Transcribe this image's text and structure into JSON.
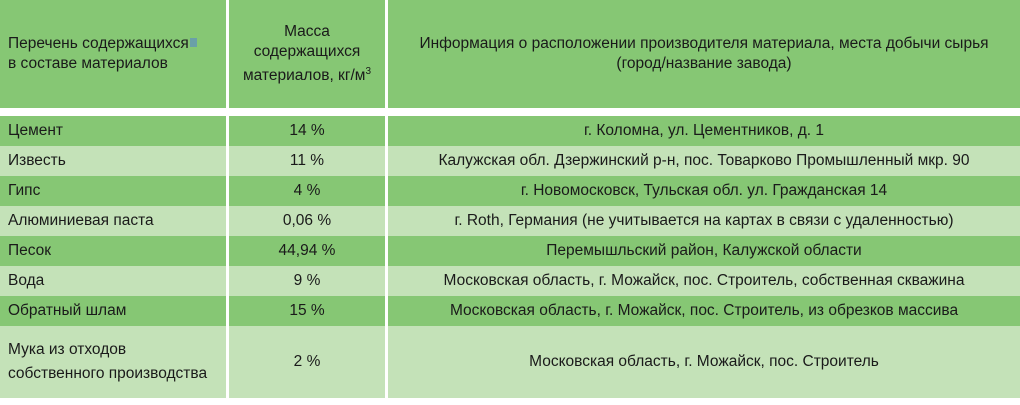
{
  "table": {
    "headers": [
      "Перечень содержащихся",
      "Масса содержащихся материалов, кг/м",
      "Информация о расположении производителя материала, места добычи сырья (город/название завода)"
    ],
    "headers_line2": [
      "в составе материалов"
    ],
    "headers_sup": [
      "",
      "3",
      ""
    ],
    "rows": [
      {
        "material": "Цемент",
        "mass": "14 %",
        "location": "г. Коломна, ул. Цементников, д. 1"
      },
      {
        "material": "Известь",
        "mass": "11 %",
        "location": "Калужская обл. Дзержинский р-н, пос. Товарково Промышленный мкр. 90"
      },
      {
        "material": "Гипс",
        "mass": "4 %",
        "location": "г. Новомосковск, Тульская обл. ул. Гражданская 14"
      },
      {
        "material": "Алюминиевая паста",
        "mass": "0,06 %",
        "location": "г. Roth, Германия (не учитывается на картах в связи с удаленностью)"
      },
      {
        "material": "Песок",
        "mass": "44,94 %",
        "location": "Перемышльский район, Калужской области"
      },
      {
        "material": "Вода",
        "mass": "9 %",
        "location": "Московская область, г. Можайск, пос. Строитель, собственная скважина"
      },
      {
        "material": "Обратный шлам",
        "mass": "15 %",
        "location": "Московская область, г. Можайск, пос. Строитель, из обрезков массива"
      },
      {
        "material": "Мука из отходов собственного производства",
        "mass": "2 %",
        "location": "Московская область, г. Можайск, пос. Строитель"
      }
    ]
  }
}
